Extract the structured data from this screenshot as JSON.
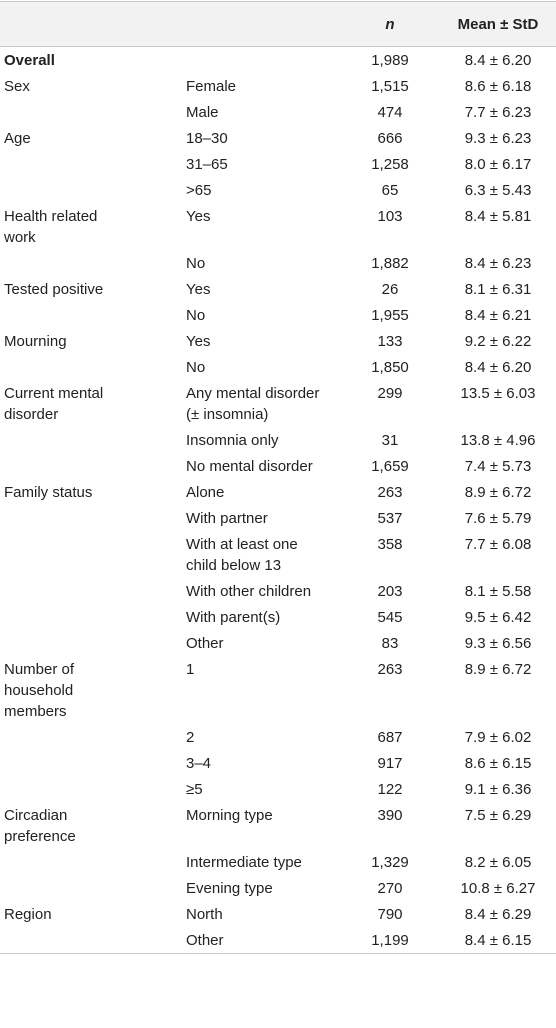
{
  "table": {
    "columns": [
      "n",
      "Mean ± StD"
    ],
    "rows": [
      [
        "Overall",
        null,
        "1,989",
        "8.4 ± 6.20"
      ],
      [
        "Sex",
        "Female",
        "1,515",
        "8.6 ± 6.18"
      ],
      [
        null,
        "Male",
        "474",
        "7.7 ± 6.23"
      ],
      [
        "Age",
        "18–30",
        "666",
        "9.3 ± 6.23"
      ],
      [
        null,
        "31–65",
        "1,258",
        "8.0 ± 6.17"
      ],
      [
        null,
        ">65",
        "65",
        "6.3 ± 5.43"
      ],
      [
        "Health related work",
        "Yes",
        "103",
        "8.4 ± 5.81"
      ],
      [
        null,
        "No",
        "1,882",
        "8.4 ± 6.23"
      ],
      [
        "Tested positive",
        "Yes",
        "26",
        "8.1 ± 6.31"
      ],
      [
        null,
        "No",
        "1,955",
        "8.4 ± 6.21"
      ],
      [
        "Mourning",
        "Yes",
        "133",
        "9.2 ± 6.22"
      ],
      [
        null,
        "No",
        "1,850",
        "8.4 ± 6.20"
      ],
      [
        "Current mental disorder",
        "Any mental disorder (± insomnia)",
        "299",
        "13.5 ± 6.03"
      ],
      [
        null,
        "Insomnia only",
        "31",
        "13.8 ± 4.96"
      ],
      [
        null,
        "No mental disorder",
        "1,659",
        "7.4 ± 5.73"
      ],
      [
        "Family status",
        "Alone",
        "263",
        "8.9 ± 6.72"
      ],
      [
        null,
        "With partner",
        "537",
        "7.6 ± 5.79"
      ],
      [
        null,
        "With at least one child below 13",
        "358",
        "7.7 ± 6.08"
      ],
      [
        null,
        "With other children",
        "203",
        "8.1 ± 5.58"
      ],
      [
        null,
        "With parent(s)",
        "545",
        "9.5 ± 6.42"
      ],
      [
        null,
        "Other",
        "83",
        "9.3 ± 6.56"
      ],
      [
        "Number of household members",
        "1",
        "263",
        "8.9 ± 6.72"
      ],
      [
        null,
        "2",
        "687",
        "7.9 ± 6.02"
      ],
      [
        null,
        "3–4",
        "917",
        "8.6 ± 6.15"
      ],
      [
        null,
        "≥5",
        "122",
        "9.1 ± 6.36"
      ],
      [
        "Circadian preference",
        "Morning type",
        "390",
        "7.5 ± 6.29"
      ],
      [
        null,
        "Intermediate type",
        "1,329",
        "8.2 ± 6.05"
      ],
      [
        null,
        "Evening type",
        "270",
        "10.8 ± 6.27"
      ],
      [
        "Region",
        "North",
        "790",
        "8.4 ± 6.29"
      ],
      [
        null,
        "Other",
        "1,199",
        "8.4 ± 6.15"
      ]
    ]
  }
}
